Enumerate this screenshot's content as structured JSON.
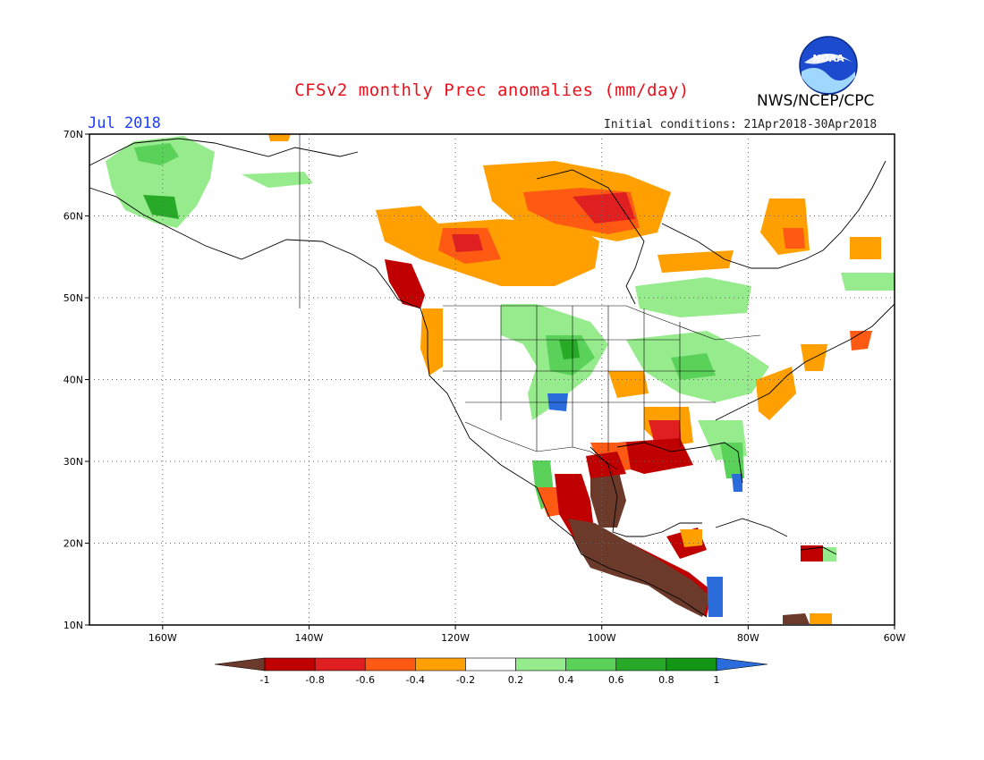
{
  "header": {
    "title": "CFSv2 monthly Prec anomalies (mm/day)",
    "valid_month": "Jul 2018",
    "initial_conditions": "Initial conditions: 21Apr2018-30Apr2018",
    "agency": "NWS/NCEP/CPC",
    "logo_text": "NOAA"
  },
  "map": {
    "lat_ticks": [
      "70N",
      "60N",
      "50N",
      "40N",
      "30N",
      "20N",
      "10N"
    ],
    "lon_ticks": [
      "160W",
      "140W",
      "120W",
      "100W",
      "80W",
      "60W"
    ],
    "lat_range": [
      10,
      70
    ],
    "lon_range": [
      -170,
      -60
    ],
    "grid": "dotted"
  },
  "legend": {
    "ticks": [
      "-1",
      "-0.8",
      "-0.6",
      "-0.4",
      "-0.2",
      "0.2",
      "0.4",
      "0.6",
      "0.8",
      "1"
    ],
    "colors": [
      "#6b3a2a",
      "#c00000",
      "#e02020",
      "#ff5a14",
      "#ffa000",
      "#ffffff",
      "#96eb8c",
      "#5ad25a",
      "#28aa28",
      "#139613",
      "#2a6cdc"
    ]
  },
  "colors": {
    "title": "#e8101a",
    "month": "#1a3cff"
  }
}
